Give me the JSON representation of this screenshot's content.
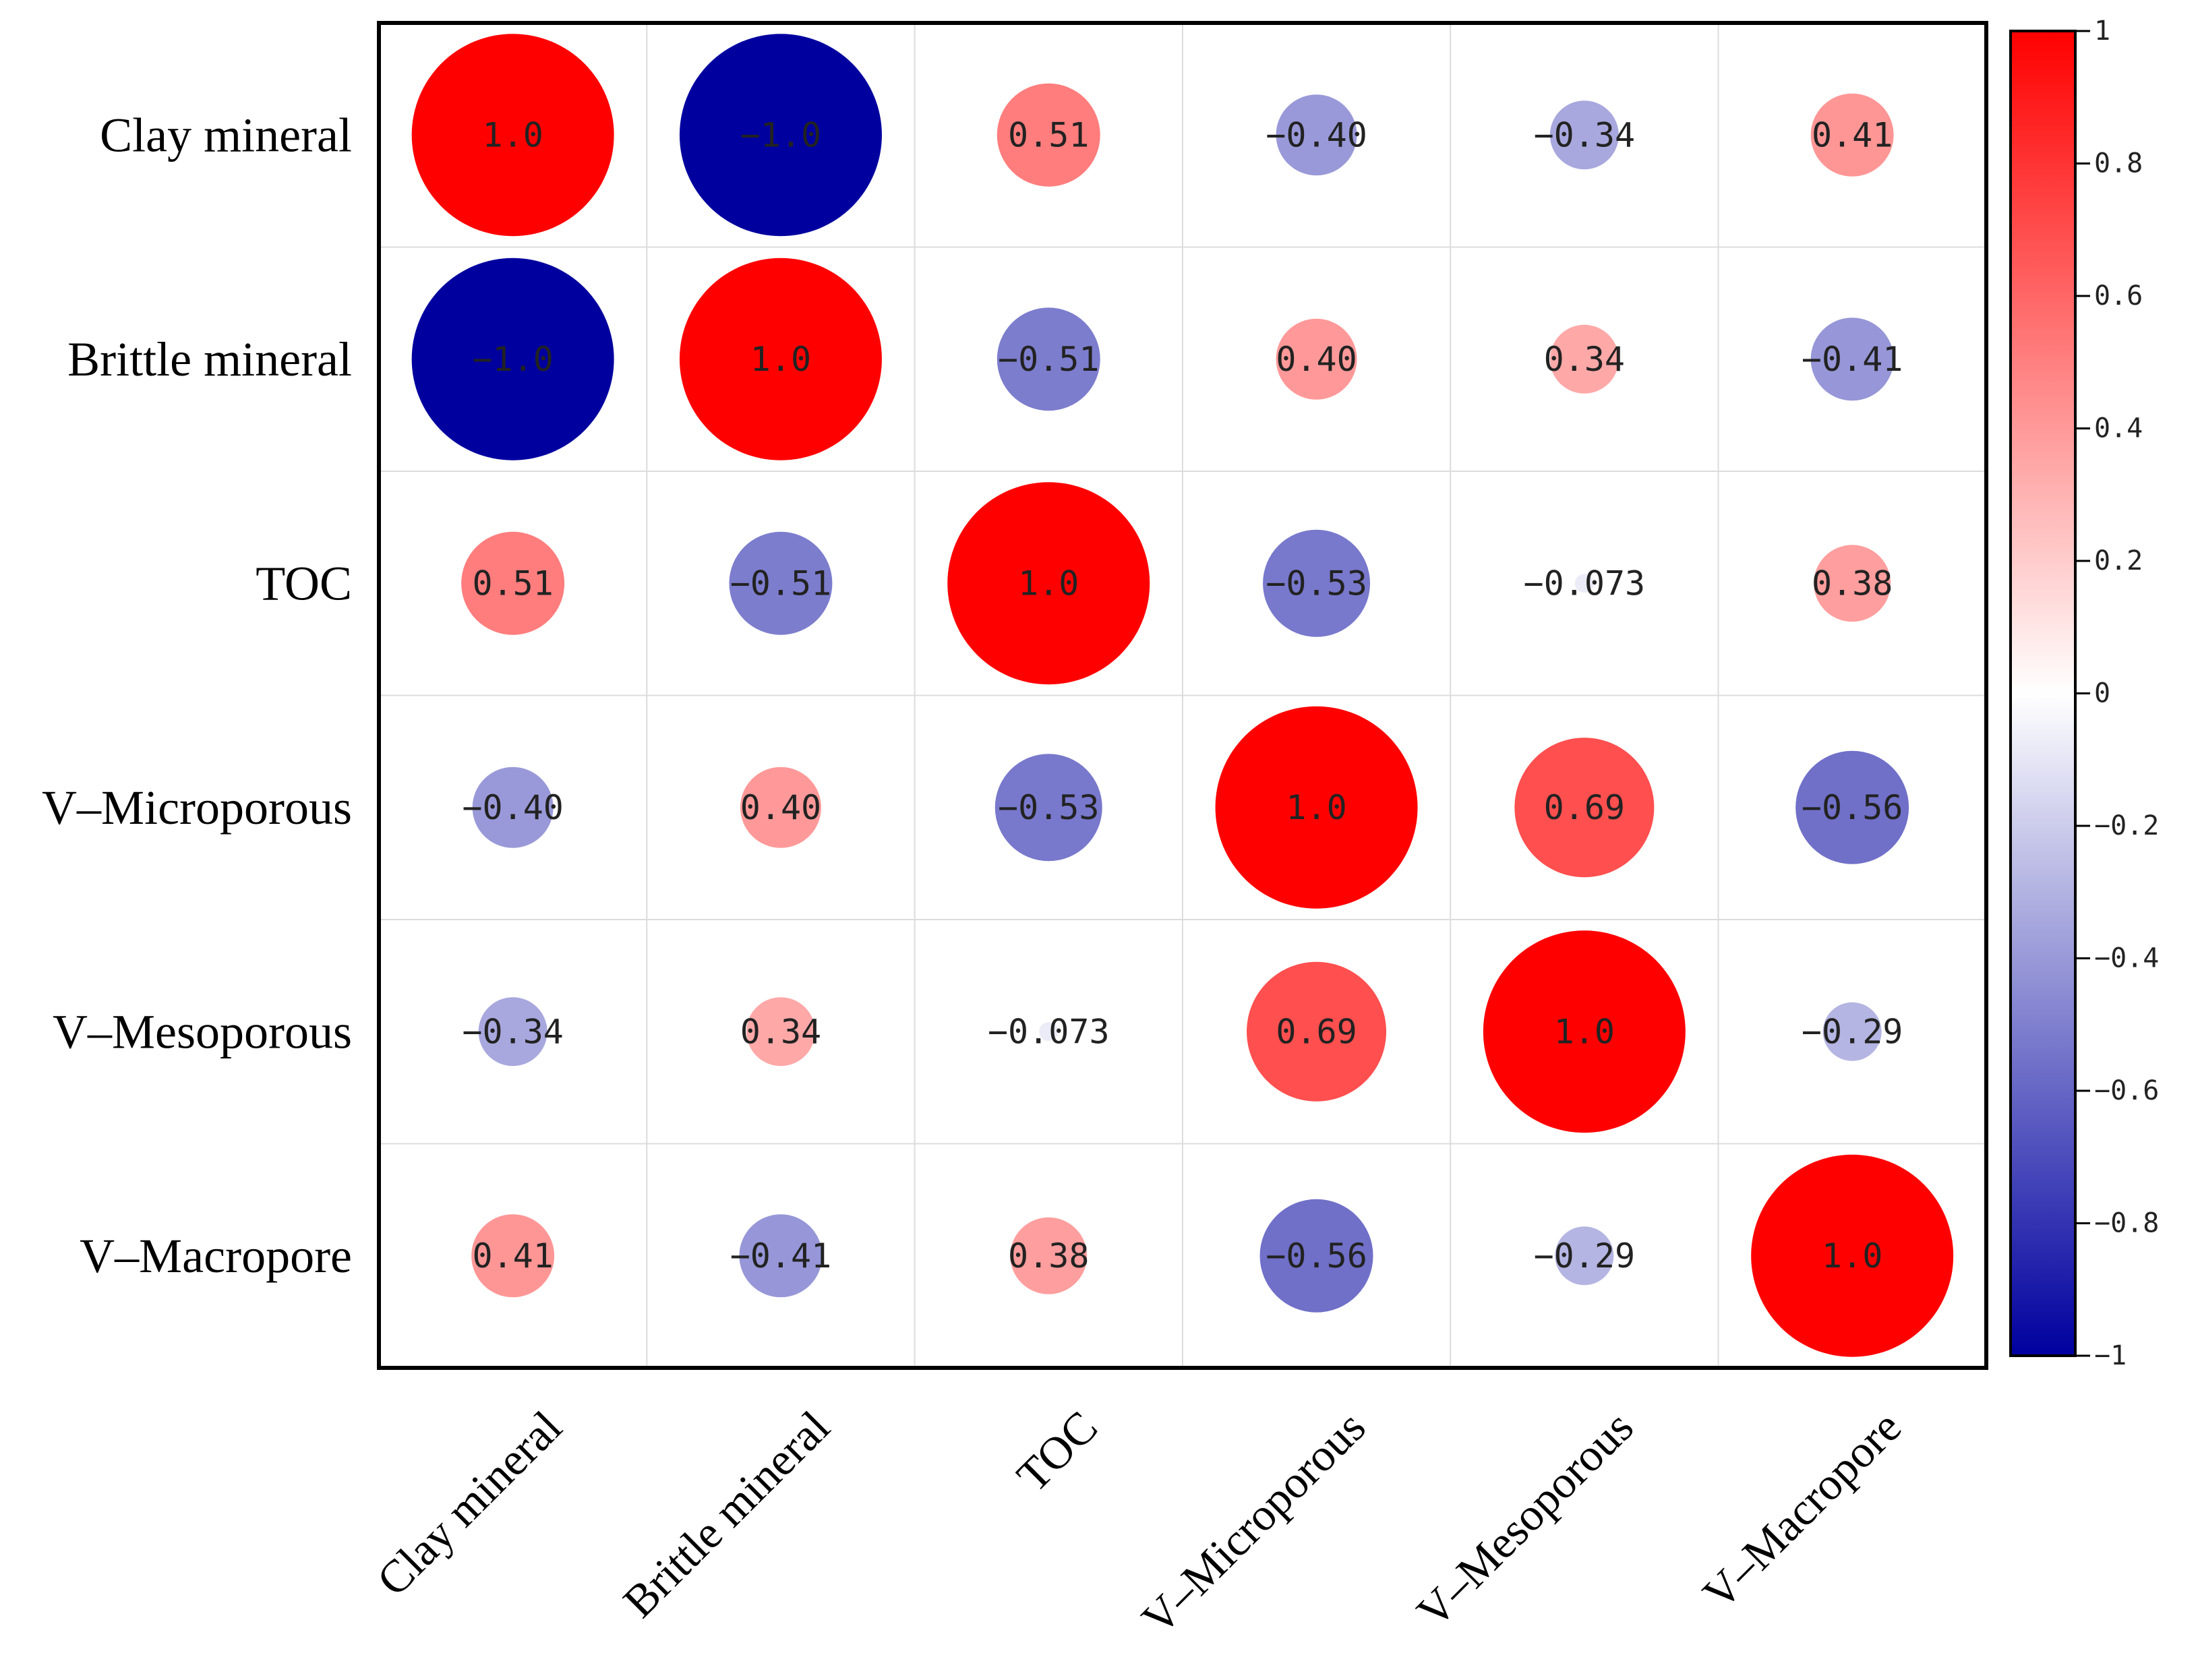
{
  "chart_data": {
    "type": "correlation-matrix",
    "variables": [
      "Clay mineral",
      "Brittle mineral",
      "TOC",
      "V–Microporous",
      "V–Mesoporous",
      "V–Macropore"
    ],
    "values": [
      [
        1.0,
        -1.0,
        0.51,
        -0.4,
        -0.34,
        0.41
      ],
      [
        -1.0,
        1.0,
        -0.51,
        0.4,
        0.34,
        -0.41
      ],
      [
        0.51,
        -0.51,
        1.0,
        -0.53,
        -0.073,
        0.38
      ],
      [
        -0.4,
        0.4,
        -0.53,
        1.0,
        0.69,
        -0.56
      ],
      [
        -0.34,
        0.34,
        -0.073,
        0.69,
        1.0,
        -0.29
      ],
      [
        0.41,
        -0.41,
        0.38,
        -0.56,
        -0.29,
        1.0
      ]
    ],
    "labels": [
      [
        "1.0",
        "−1.0",
        "0.51",
        "−0.40",
        "−0.34",
        "0.41"
      ],
      [
        "−1.0",
        "1.0",
        "−0.51",
        "0.40",
        "0.34",
        "−0.41"
      ],
      [
        "0.51",
        "−0.51",
        "1.0",
        "−0.53",
        "−0.073",
        "0.38"
      ],
      [
        "−0.40",
        "0.40",
        "−0.53",
        "1.0",
        "0.69",
        "−0.56"
      ],
      [
        "−0.34",
        "0.34",
        "−0.073",
        "0.69",
        "1.0",
        "−0.29"
      ],
      [
        "0.41",
        "−0.41",
        "0.38",
        "−0.56",
        "−0.29",
        "1.0"
      ]
    ],
    "colorbar": {
      "range": [
        -1,
        1
      ],
      "ticks": [
        "1",
        "0.8",
        "0.6",
        "0.4",
        "0.2",
        "0",
        "−0.2",
        "−0.4",
        "−0.6",
        "−0.8",
        "−1"
      ],
      "tick_values": [
        1,
        0.8,
        0.6,
        0.4,
        0.2,
        0,
        -0.2,
        -0.4,
        -0.6,
        -0.8,
        -1
      ],
      "color_positive": "#ff0000",
      "color_zero": "#ffffff",
      "color_negative": "#00009f"
    },
    "grid": true
  }
}
